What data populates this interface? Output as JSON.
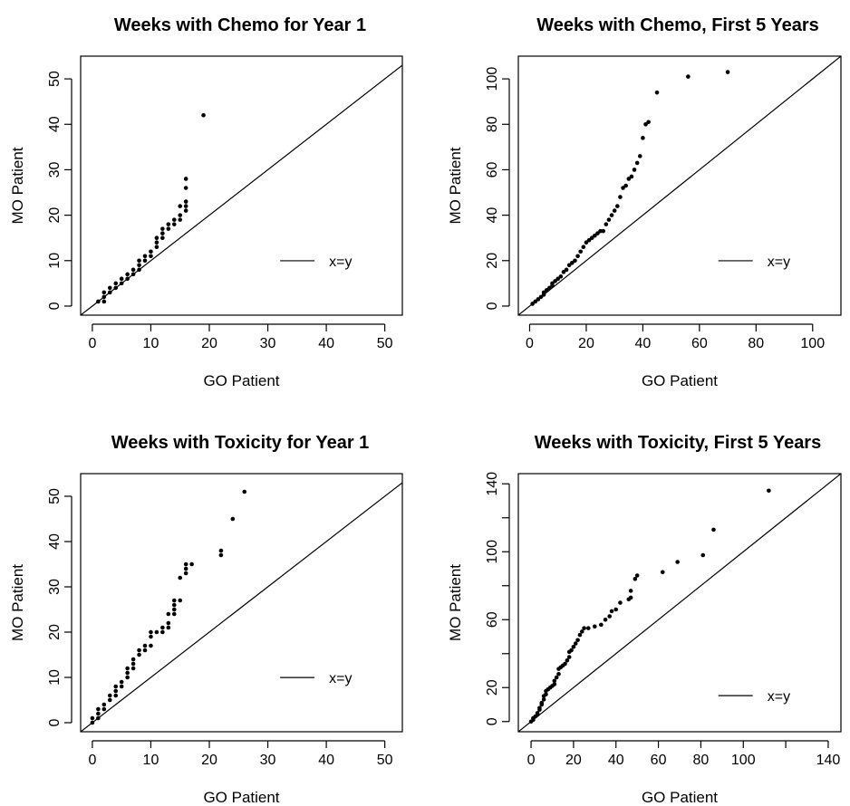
{
  "chart_data": [
    {
      "type": "scatter",
      "title": "Weeks with Chemo for Year 1",
      "xlabel": "GO Patient",
      "ylabel": "MO Patient",
      "xlim": [
        -2,
        53
      ],
      "ylim": [
        -2,
        55
      ],
      "x_ticks": [
        "0",
        "10",
        "20",
        "30",
        "40",
        "50"
      ],
      "y_ticks": [
        "0",
        "10",
        "20",
        "30",
        "40",
        "50"
      ],
      "reference_line": "x=y",
      "legend": {
        "entries": [
          "x=y"
        ],
        "position": "right"
      },
      "series": [
        {
          "points": [
            [
              1,
              1
            ],
            [
              2,
              1
            ],
            [
              2,
              2
            ],
            [
              2,
              3
            ],
            [
              3,
              3
            ],
            [
              3,
              4
            ],
            [
              4,
              4
            ],
            [
              4,
              5
            ],
            [
              5,
              5
            ],
            [
              5,
              6
            ],
            [
              6,
              6
            ],
            [
              6,
              7
            ],
            [
              7,
              7
            ],
            [
              7,
              8
            ],
            [
              8,
              8
            ],
            [
              8,
              9
            ],
            [
              8,
              10
            ],
            [
              9,
              10
            ],
            [
              9,
              11
            ],
            [
              10,
              11
            ],
            [
              10,
              12
            ],
            [
              11,
              13
            ],
            [
              11,
              14
            ],
            [
              11,
              15
            ],
            [
              12,
              15
            ],
            [
              12,
              16
            ],
            [
              12,
              17
            ],
            [
              13,
              17
            ],
            [
              13,
              18
            ],
            [
              14,
              18
            ],
            [
              14,
              19
            ],
            [
              15,
              19
            ],
            [
              15,
              20
            ],
            [
              15,
              22
            ],
            [
              16,
              21
            ],
            [
              16,
              22
            ],
            [
              16,
              23
            ],
            [
              16,
              26
            ],
            [
              16,
              28
            ],
            [
              19,
              42
            ]
          ]
        }
      ]
    },
    {
      "type": "scatter",
      "title": "Weeks with Chemo, First 5 Years",
      "xlabel": "GO Patient",
      "ylabel": "MO Patient",
      "xlim": [
        -4,
        110
      ],
      "ylim": [
        -4,
        110
      ],
      "x_ticks": [
        "0",
        "20",
        "40",
        "60",
        "80",
        "100"
      ],
      "y_ticks": [
        "0",
        "20",
        "40",
        "60",
        "80",
        "100"
      ],
      "reference_line": "x=y",
      "legend": {
        "entries": [
          "x=y"
        ],
        "position": "right"
      },
      "series": [
        {
          "points": [
            [
              1,
              1
            ],
            [
              2,
              2
            ],
            [
              3,
              3
            ],
            [
              4,
              4
            ],
            [
              5,
              5
            ],
            [
              5,
              6
            ],
            [
              6,
              7
            ],
            [
              7,
              8
            ],
            [
              8,
              9
            ],
            [
              8,
              10
            ],
            [
              9,
              11
            ],
            [
              10,
              12
            ],
            [
              11,
              13
            ],
            [
              12,
              15
            ],
            [
              13,
              16
            ],
            [
              14,
              18
            ],
            [
              15,
              19
            ],
            [
              16,
              20
            ],
            [
              17,
              22
            ],
            [
              18,
              24
            ],
            [
              19,
              26
            ],
            [
              20,
              28
            ],
            [
              21,
              29
            ],
            [
              22,
              30
            ],
            [
              23,
              31
            ],
            [
              24,
              32
            ],
            [
              25,
              33
            ],
            [
              26,
              33
            ],
            [
              27,
              36
            ],
            [
              28,
              38
            ],
            [
              29,
              40
            ],
            [
              30,
              42
            ],
            [
              31,
              44
            ],
            [
              32,
              48
            ],
            [
              33,
              52
            ],
            [
              34,
              53
            ],
            [
              35,
              56
            ],
            [
              36,
              57
            ],
            [
              37,
              60
            ],
            [
              38,
              63
            ],
            [
              39,
              66
            ],
            [
              40,
              74
            ],
            [
              41,
              80
            ],
            [
              42,
              81
            ],
            [
              45,
              94
            ],
            [
              56,
              101
            ],
            [
              70,
              103
            ]
          ]
        }
      ]
    },
    {
      "type": "scatter",
      "title": "Weeks with Toxicity for Year 1",
      "xlabel": "GO Patient",
      "ylabel": "MO Patient",
      "xlim": [
        -2,
        53
      ],
      "ylim": [
        -2,
        55
      ],
      "x_ticks": [
        "0",
        "10",
        "20",
        "30",
        "40",
        "50"
      ],
      "y_ticks": [
        "0",
        "10",
        "20",
        "30",
        "40",
        "50"
      ],
      "reference_line": "x=y",
      "legend": {
        "entries": [
          "x=y"
        ],
        "position": "right"
      },
      "series": [
        {
          "points": [
            [
              0,
              0
            ],
            [
              0,
              1
            ],
            [
              1,
              1
            ],
            [
              1,
              2
            ],
            [
              1,
              3
            ],
            [
              2,
              3
            ],
            [
              2,
              4
            ],
            [
              3,
              5
            ],
            [
              3,
              6
            ],
            [
              4,
              6
            ],
            [
              4,
              7
            ],
            [
              4,
              8
            ],
            [
              5,
              8
            ],
            [
              5,
              9
            ],
            [
              6,
              10
            ],
            [
              6,
              11
            ],
            [
              6,
              12
            ],
            [
              7,
              12
            ],
            [
              7,
              13
            ],
            [
              7,
              14
            ],
            [
              8,
              15
            ],
            [
              8,
              16
            ],
            [
              9,
              16
            ],
            [
              9,
              17
            ],
            [
              10,
              17
            ],
            [
              10,
              19
            ],
            [
              10,
              20
            ],
            [
              11,
              20
            ],
            [
              12,
              20
            ],
            [
              12,
              21
            ],
            [
              13,
              21
            ],
            [
              13,
              22
            ],
            [
              13,
              24
            ],
            [
              14,
              24
            ],
            [
              14,
              25
            ],
            [
              14,
              26
            ],
            [
              14,
              27
            ],
            [
              15,
              27
            ],
            [
              15,
              32
            ],
            [
              16,
              33
            ],
            [
              16,
              34
            ],
            [
              16,
              35
            ],
            [
              17,
              35
            ],
            [
              22,
              37
            ],
            [
              22,
              38
            ],
            [
              24,
              45
            ],
            [
              26,
              51
            ]
          ]
        }
      ]
    },
    {
      "type": "scatter",
      "title": "Weeks with Toxicity, First 5 Years",
      "xlabel": "GO Patient",
      "ylabel": "MO Patient",
      "xlim": [
        -6,
        146
      ],
      "ylim": [
        -6,
        146
      ],
      "x_ticks": [
        "0",
        "20",
        "40",
        "60",
        "80",
        "100",
        "",
        "140"
      ],
      "x_tick_values": [
        0,
        20,
        40,
        60,
        80,
        100,
        120,
        140
      ],
      "y_ticks": [
        "0",
        "20",
        "",
        "60",
        "",
        "100",
        "",
        "140"
      ],
      "y_tick_values": [
        0,
        20,
        40,
        60,
        80,
        100,
        120,
        140
      ],
      "reference_line": "x=y",
      "legend": {
        "entries": [
          "x=y"
        ],
        "position": "right"
      },
      "series": [
        {
          "points": [
            [
              0,
              0
            ],
            [
              1,
              1
            ],
            [
              1,
              2
            ],
            [
              2,
              3
            ],
            [
              3,
              4
            ],
            [
              3,
              5
            ],
            [
              4,
              7
            ],
            [
              4,
              8
            ],
            [
              5,
              10
            ],
            [
              5,
              11
            ],
            [
              6,
              13
            ],
            [
              6,
              15
            ],
            [
              7,
              16
            ],
            [
              7,
              18
            ],
            [
              8,
              19
            ],
            [
              9,
              20
            ],
            [
              10,
              21
            ],
            [
              11,
              22
            ],
            [
              11,
              24
            ],
            [
              12,
              26
            ],
            [
              13,
              28
            ],
            [
              13,
              31
            ],
            [
              14,
              32
            ],
            [
              15,
              33
            ],
            [
              16,
              34
            ],
            [
              17,
              36
            ],
            [
              18,
              38
            ],
            [
              18,
              41
            ],
            [
              19,
              42
            ],
            [
              20,
              44
            ],
            [
              21,
              46
            ],
            [
              22,
              48
            ],
            [
              23,
              51
            ],
            [
              24,
              53
            ],
            [
              25,
              55
            ],
            [
              27,
              55
            ],
            [
              30,
              56
            ],
            [
              33,
              57
            ],
            [
              35,
              60
            ],
            [
              37,
              62
            ],
            [
              38,
              65
            ],
            [
              40,
              66
            ],
            [
              42,
              70
            ],
            [
              46,
              72
            ],
            [
              47,
              73
            ],
            [
              47,
              77
            ],
            [
              49,
              84
            ],
            [
              50,
              86
            ],
            [
              62,
              88
            ],
            [
              69,
              94
            ],
            [
              81,
              98
            ],
            [
              86,
              113
            ],
            [
              112,
              136
            ]
          ]
        }
      ]
    }
  ]
}
